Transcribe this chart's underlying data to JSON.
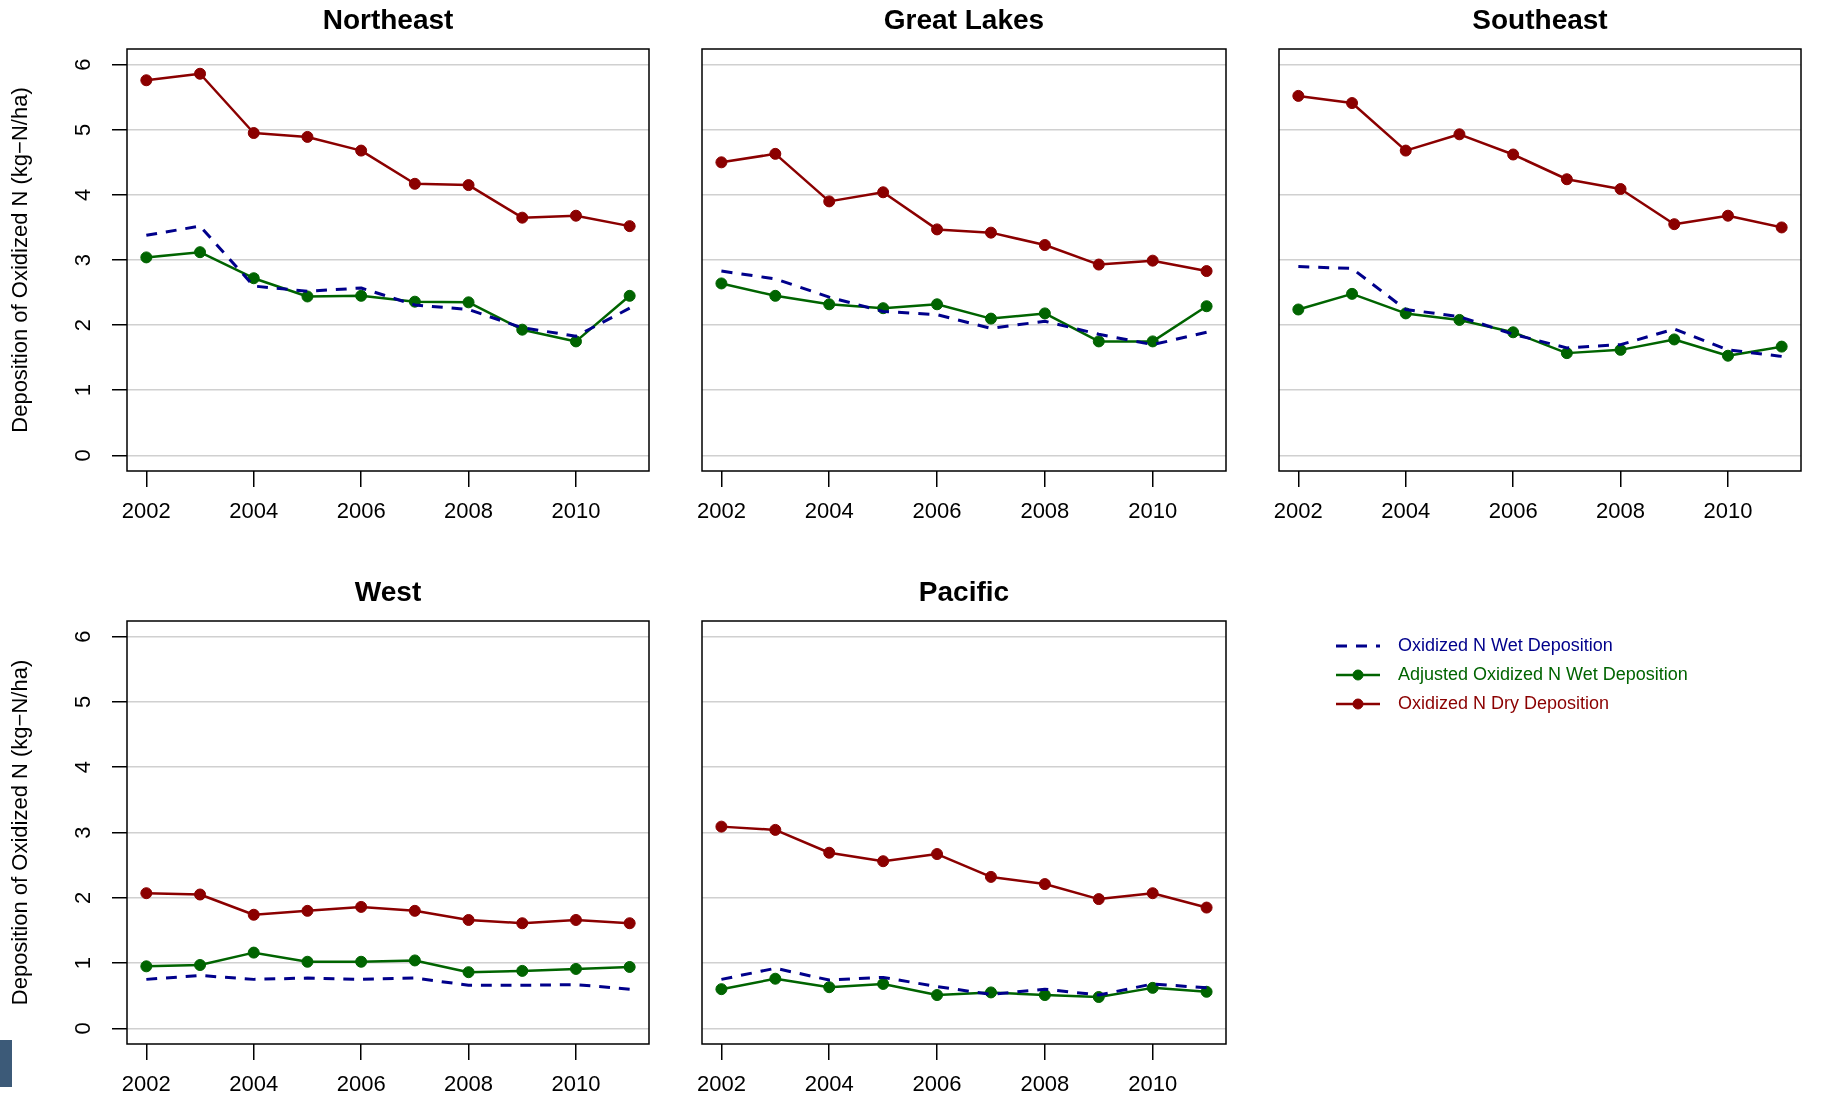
{
  "chart_data": [
    {
      "type": "line",
      "title": "Northeast",
      "ylabel": "Deposition of Oxidized N (kg−N/ha)",
      "x": [
        2002,
        2003,
        2004,
        2005,
        2006,
        2007,
        2008,
        2009,
        2010,
        2011
      ],
      "xlim": [
        2001.64,
        2011.36
      ],
      "xticks": [
        2002,
        2004,
        2006,
        2008,
        2010
      ],
      "ylim": [
        -0.24,
        6.24
      ],
      "yticks": [
        0,
        1,
        2,
        3,
        4,
        5,
        6
      ],
      "grid": "y",
      "series": [
        {
          "color": "#00008b",
          "line_style": "dashed",
          "marker": "none",
          "values": [
            3.38,
            3.52,
            2.6,
            2.52,
            2.57,
            2.31,
            2.24,
            1.96,
            1.83,
            2.26
          ]
        },
        {
          "color": "#006400",
          "line_style": "solid",
          "marker": "circle",
          "values": [
            3.04,
            3.12,
            2.72,
            2.44,
            2.45,
            2.36,
            2.35,
            1.93,
            1.75,
            2.45
          ]
        },
        {
          "color": "#8b0000",
          "line_style": "solid",
          "marker": "circle",
          "values": [
            5.76,
            5.86,
            4.95,
            4.89,
            4.68,
            4.17,
            4.15,
            3.65,
            3.68,
            3.52
          ]
        }
      ]
    },
    {
      "type": "line",
      "title": "Great Lakes",
      "x": [
        2002,
        2003,
        2004,
        2005,
        2006,
        2007,
        2008,
        2009,
        2010,
        2011
      ],
      "xlim": [
        2001.64,
        2011.36
      ],
      "xticks": [
        2002,
        2004,
        2006,
        2008,
        2010
      ],
      "ylim": [
        -0.24,
        6.24
      ],
      "yticks": [
        0,
        1,
        2,
        3,
        4,
        5,
        6
      ],
      "grid": "y",
      "tick_labels": "x",
      "series": [
        {
          "color": "#00008b",
          "line_style": "dashed",
          "marker": "none",
          "values": [
            2.83,
            2.71,
            2.43,
            2.21,
            2.16,
            1.95,
            2.06,
            1.86,
            1.7,
            1.89
          ]
        },
        {
          "color": "#006400",
          "line_style": "solid",
          "marker": "circle",
          "values": [
            2.64,
            2.45,
            2.32,
            2.26,
            2.32,
            2.1,
            2.18,
            1.75,
            1.75,
            2.29
          ]
        },
        {
          "color": "#8b0000",
          "line_style": "solid",
          "marker": "circle",
          "values": [
            4.5,
            4.63,
            3.9,
            4.04,
            3.47,
            3.42,
            3.23,
            2.93,
            2.99,
            2.83
          ]
        }
      ]
    },
    {
      "type": "line",
      "title": "Southeast",
      "x": [
        2002,
        2003,
        2004,
        2005,
        2006,
        2007,
        2008,
        2009,
        2010,
        2011
      ],
      "xlim": [
        2001.64,
        2011.36
      ],
      "xticks": [
        2002,
        2004,
        2006,
        2008,
        2010
      ],
      "ylim": [
        -0.24,
        6.24
      ],
      "yticks": [
        0,
        1,
        2,
        3,
        4,
        5,
        6
      ],
      "grid": "y",
      "tick_labels": "x",
      "series": [
        {
          "color": "#00008b",
          "line_style": "dashed",
          "marker": "none",
          "values": [
            2.9,
            2.87,
            2.24,
            2.13,
            1.86,
            1.65,
            1.7,
            1.94,
            1.62,
            1.52
          ]
        },
        {
          "color": "#006400",
          "line_style": "solid",
          "marker": "circle",
          "values": [
            2.24,
            2.48,
            2.18,
            2.08,
            1.89,
            1.57,
            1.62,
            1.78,
            1.53,
            1.67
          ]
        },
        {
          "color": "#8b0000",
          "line_style": "solid",
          "marker": "circle",
          "values": [
            5.52,
            5.41,
            4.68,
            4.93,
            4.62,
            4.24,
            4.09,
            3.55,
            3.68,
            3.5
          ]
        }
      ]
    },
    {
      "type": "line",
      "title": "West",
      "ylabel": "Deposition of Oxidized N (kg−N/ha)",
      "x": [
        2002,
        2003,
        2004,
        2005,
        2006,
        2007,
        2008,
        2009,
        2010,
        2011
      ],
      "xlim": [
        2001.64,
        2011.36
      ],
      "xticks": [
        2002,
        2004,
        2006,
        2008,
        2010
      ],
      "ylim": [
        -0.24,
        6.24
      ],
      "yticks": [
        0,
        1,
        2,
        3,
        4,
        5,
        6
      ],
      "grid": "y",
      "series": [
        {
          "color": "#00008b",
          "line_style": "dashed",
          "marker": "none",
          "values": [
            0.75,
            0.81,
            0.75,
            0.77,
            0.75,
            0.77,
            0.66,
            0.66,
            0.67,
            0.6
          ]
        },
        {
          "color": "#006400",
          "line_style": "solid",
          "marker": "circle",
          "values": [
            0.95,
            0.97,
            1.16,
            1.02,
            1.02,
            1.04,
            0.86,
            0.88,
            0.91,
            0.94
          ]
        },
        {
          "color": "#8b0000",
          "line_style": "solid",
          "marker": "circle",
          "values": [
            2.07,
            2.05,
            1.74,
            1.8,
            1.86,
            1.8,
            1.66,
            1.61,
            1.66,
            1.61
          ]
        }
      ]
    },
    {
      "type": "line",
      "title": "Pacific",
      "x": [
        2002,
        2003,
        2004,
        2005,
        2006,
        2007,
        2008,
        2009,
        2010,
        2011
      ],
      "xlim": [
        2001.64,
        2011.36
      ],
      "xticks": [
        2002,
        2004,
        2006,
        2008,
        2010
      ],
      "ylim": [
        -0.24,
        6.24
      ],
      "yticks": [
        0,
        1,
        2,
        3,
        4,
        5,
        6
      ],
      "grid": "y",
      "tick_labels": "x",
      "legend": "right",
      "series": [
        {
          "name": "Oxidized N Wet Deposition",
          "color": "#00008b",
          "line_style": "dashed",
          "marker": "none",
          "values": [
            0.75,
            0.92,
            0.74,
            0.78,
            0.64,
            0.52,
            0.6,
            0.51,
            0.68,
            0.62
          ]
        },
        {
          "name": "Adjusted Oxidized N Wet Deposition",
          "color": "#006400",
          "line_style": "solid",
          "marker": "circle",
          "values": [
            0.6,
            0.76,
            0.63,
            0.68,
            0.51,
            0.55,
            0.51,
            0.48,
            0.62,
            0.56
          ]
        },
        {
          "name": "Oxidized N Dry Deposition",
          "color": "#8b0000",
          "line_style": "solid",
          "marker": "circle",
          "values": [
            3.09,
            3.04,
            2.69,
            2.56,
            2.67,
            2.32,
            2.21,
            1.98,
            2.07,
            1.85
          ]
        }
      ]
    }
  ]
}
